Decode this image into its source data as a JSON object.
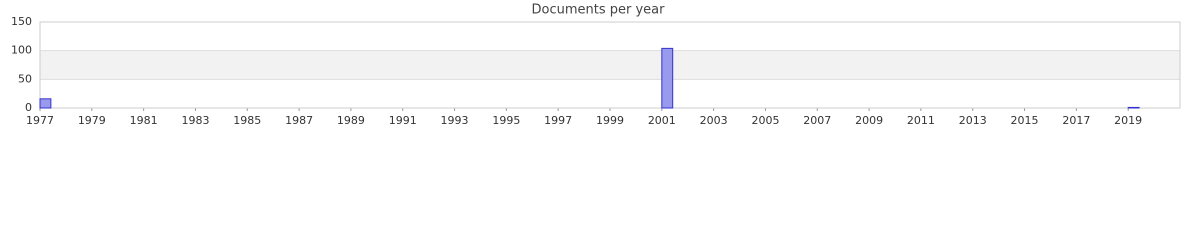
{
  "chart_data": {
    "type": "bar",
    "title": "Documents per year",
    "x": [
      1977,
      2001,
      2019
    ],
    "values": [
      16,
      104,
      1
    ],
    "color": "#9999ee",
    "edge_color": "#3333cc",
    "xlim": [
      1977,
      2021
    ],
    "xticks": [
      1977,
      1979,
      1981,
      1983,
      1985,
      1987,
      1989,
      1991,
      1993,
      1995,
      1997,
      1999,
      2001,
      2003,
      2005,
      2007,
      2009,
      2011,
      2013,
      2015,
      2017,
      2019
    ],
    "ylim": [
      0,
      150
    ],
    "yticks": [
      0,
      50,
      100,
      150
    ],
    "grid": true
  }
}
